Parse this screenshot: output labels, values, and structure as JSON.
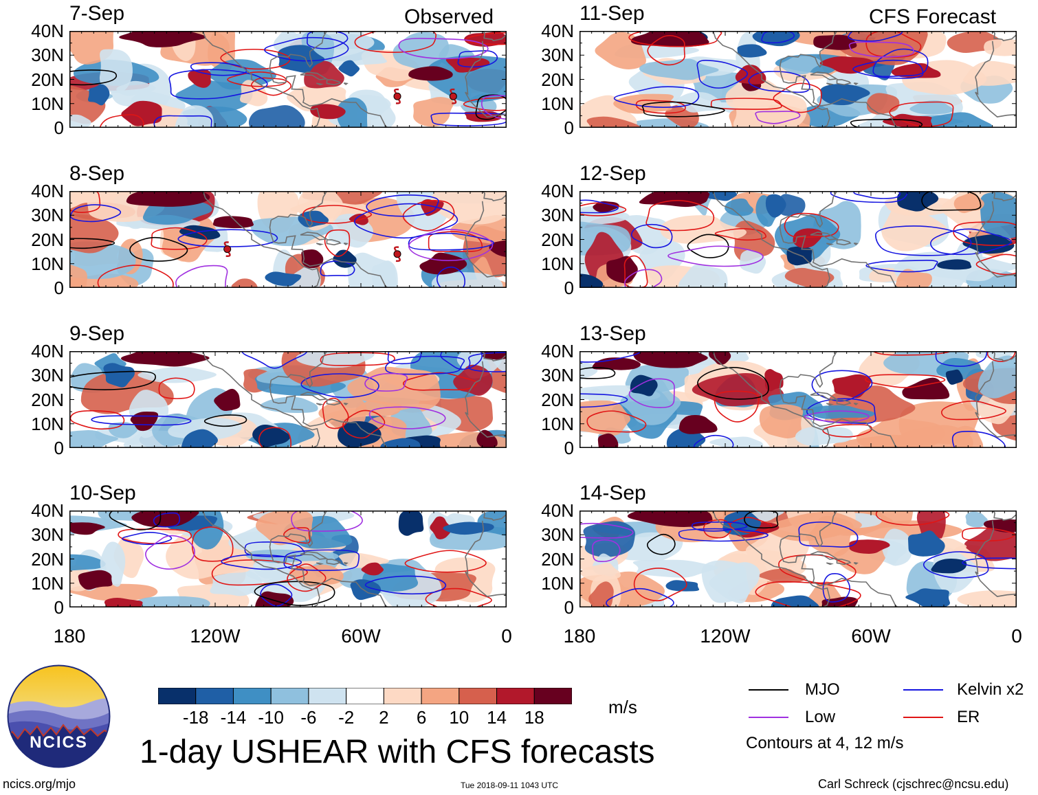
{
  "column_labels": {
    "left": "Observed",
    "right": "CFS Forecast"
  },
  "panels": [
    {
      "date": "7-Sep",
      "column": "left",
      "row": 0,
      "storms": [
        [
          -45,
          13
        ],
        [
          -22,
          13
        ]
      ]
    },
    {
      "date": "8-Sep",
      "column": "left",
      "row": 1,
      "storms": [
        [
          -115,
          16
        ],
        [
          -45,
          14
        ]
      ]
    },
    {
      "date": "9-Sep",
      "column": "left",
      "row": 2,
      "storms": []
    },
    {
      "date": "10-Sep",
      "column": "left",
      "row": 3,
      "storms": []
    },
    {
      "date": "11-Sep",
      "column": "right",
      "row": 0,
      "storms": []
    },
    {
      "date": "12-Sep",
      "column": "right",
      "row": 1,
      "storms": []
    },
    {
      "date": "13-Sep",
      "column": "right",
      "row": 2,
      "storms": []
    },
    {
      "date": "14-Sep",
      "column": "right",
      "row": 3,
      "storms": []
    }
  ],
  "y_ticks": [
    "40N",
    "30N",
    "20N",
    "10N",
    "0"
  ],
  "x_ticks": [
    "180",
    "120W",
    "60W",
    "0"
  ],
  "colorbar": {
    "colors": [
      "#08306b",
      "#1f5fa6",
      "#3f8fc4",
      "#8fc0de",
      "#cfe3f0",
      "#ffffff",
      "#fdd9c4",
      "#f4a582",
      "#d6604d",
      "#b2182b",
      "#67001f"
    ],
    "ticks": [
      "-18",
      "-14",
      "-10",
      "-6",
      "-2",
      "2",
      "6",
      "10",
      "14",
      "18"
    ],
    "unit": "m/s"
  },
  "legend": {
    "items": [
      {
        "label": "MJO",
        "color": "#000000"
      },
      {
        "label": "Kelvin x2",
        "color": "#1515e0"
      },
      {
        "label": "Low",
        "color": "#a030e0"
      },
      {
        "label": "ER",
        "color": "#e01515"
      }
    ],
    "note": "Contours at 4, 12 m/s"
  },
  "logo": {
    "text": "NCICS"
  },
  "title": "1-day USHEAR with CFS forecasts",
  "footer": {
    "url": "ncics.org/mjo",
    "timestamp": "Tue 2018-09-11 1043 UTC",
    "author": "Carl Schreck (cjschrec@ncsu.edu)"
  }
}
